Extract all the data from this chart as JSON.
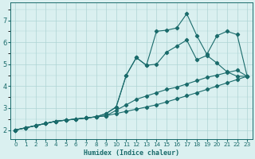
{
  "title": "",
  "xlabel": "Humidex (Indice chaleur)",
  "ylabel": "",
  "bg_color": "#daf0f0",
  "grid_color": "#aed4d4",
  "line_color": "#1a6b6b",
  "xlim": [
    -0.5,
    23.5
  ],
  "ylim": [
    1.6,
    7.8
  ],
  "xticks": [
    0,
    1,
    2,
    3,
    4,
    5,
    6,
    7,
    8,
    9,
    10,
    11,
    12,
    13,
    14,
    15,
    16,
    17,
    18,
    19,
    20,
    21,
    22,
    23
  ],
  "yticks": [
    2,
    3,
    4,
    5,
    6,
    7
  ],
  "line1_x": [
    0,
    1,
    2,
    3,
    4,
    5,
    6,
    7,
    8,
    9,
    10,
    11,
    12,
    13,
    14,
    15,
    16,
    17,
    18,
    19,
    20,
    21,
    22,
    23
  ],
  "line1_y": [
    2.0,
    2.1,
    2.2,
    2.3,
    2.4,
    2.45,
    2.5,
    2.55,
    2.6,
    2.65,
    2.75,
    2.85,
    2.95,
    3.05,
    3.15,
    3.28,
    3.42,
    3.56,
    3.7,
    3.85,
    4.0,
    4.15,
    4.3,
    4.45
  ],
  "line2_x": [
    0,
    1,
    2,
    3,
    4,
    5,
    6,
    7,
    8,
    9,
    10,
    11,
    12,
    13,
    14,
    15,
    16,
    17,
    18,
    19,
    20,
    21,
    22,
    23
  ],
  "line2_y": [
    2.0,
    2.1,
    2.2,
    2.3,
    2.4,
    2.45,
    2.5,
    2.55,
    2.6,
    2.65,
    2.9,
    3.15,
    3.4,
    3.55,
    3.7,
    3.85,
    3.95,
    4.1,
    4.25,
    4.4,
    4.5,
    4.62,
    4.72,
    4.45
  ],
  "line3_x": [
    0,
    1,
    2,
    3,
    4,
    5,
    6,
    7,
    8,
    9,
    10,
    11,
    12,
    13,
    14,
    15,
    16,
    17,
    18,
    19,
    20,
    21,
    22,
    23
  ],
  "line3_y": [
    2.0,
    2.1,
    2.2,
    2.3,
    2.4,
    2.45,
    2.5,
    2.55,
    2.6,
    2.75,
    3.05,
    4.5,
    5.3,
    4.95,
    5.0,
    5.55,
    5.82,
    6.1,
    5.2,
    5.4,
    5.05,
    4.65,
    4.45,
    4.45
  ],
  "line4_x": [
    0,
    1,
    2,
    3,
    4,
    5,
    6,
    7,
    8,
    9,
    10,
    11,
    12,
    13,
    14,
    15,
    16,
    17,
    18,
    19,
    20,
    21,
    22,
    23
  ],
  "line4_y": [
    2.0,
    2.1,
    2.2,
    2.3,
    2.4,
    2.45,
    2.5,
    2.55,
    2.6,
    2.75,
    3.05,
    4.5,
    5.3,
    4.95,
    6.5,
    6.55,
    6.65,
    7.3,
    6.3,
    5.45,
    6.3,
    6.5,
    6.35,
    4.45
  ]
}
